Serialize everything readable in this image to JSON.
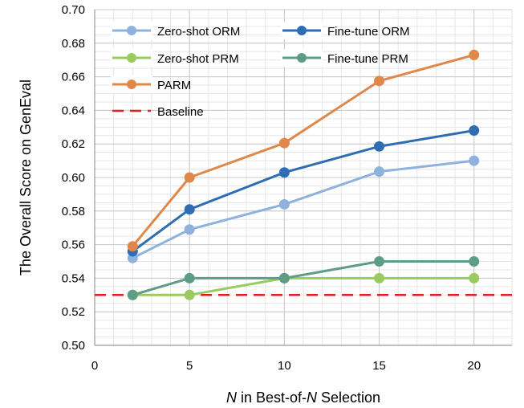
{
  "chart_data": {
    "type": "line",
    "x": [
      2,
      5,
      10,
      15,
      20
    ],
    "xlim": [
      0,
      22
    ],
    "ylim": [
      0.5,
      0.7
    ],
    "xticks": [
      0,
      5,
      10,
      15,
      20
    ],
    "yticks": [
      0.5,
      0.52,
      0.54,
      0.56,
      0.58,
      0.6,
      0.62,
      0.64,
      0.66,
      0.68,
      0.7
    ],
    "xlabel_parts": [
      {
        "text": "N",
        "italic": true
      },
      {
        "text": " in Best-of-",
        "italic": false
      },
      {
        "text": "N",
        "italic": true
      },
      {
        "text": " Selection",
        "italic": false
      }
    ],
    "ylabel": "The Overall Score on GenEval",
    "grid": true,
    "series": [
      {
        "name": "Zero-shot ORM",
        "color": "#8eb1dd",
        "values": [
          0.552,
          0.569,
          0.584,
          0.6035,
          0.61
        ]
      },
      {
        "name": "Fine-tune ORM",
        "color": "#2e6db4",
        "values": [
          0.556,
          0.581,
          0.603,
          0.6185,
          0.628
        ]
      },
      {
        "name": "Zero-shot PRM",
        "color": "#9acb5f",
        "values": [
          0.53,
          0.53,
          0.54,
          0.54,
          0.54
        ]
      },
      {
        "name": "Fine-tune PRM",
        "color": "#5f9c86",
        "values": [
          0.53,
          0.54,
          0.54,
          0.55,
          0.55
        ]
      },
      {
        "name": "PARM",
        "color": "#e0874a",
        "values": [
          0.559,
          0.6,
          0.6205,
          0.6575,
          0.673
        ]
      }
    ],
    "baseline": {
      "name": "Baseline",
      "value": 0.53,
      "color": "#e02020"
    },
    "legend_position": "top-left"
  }
}
